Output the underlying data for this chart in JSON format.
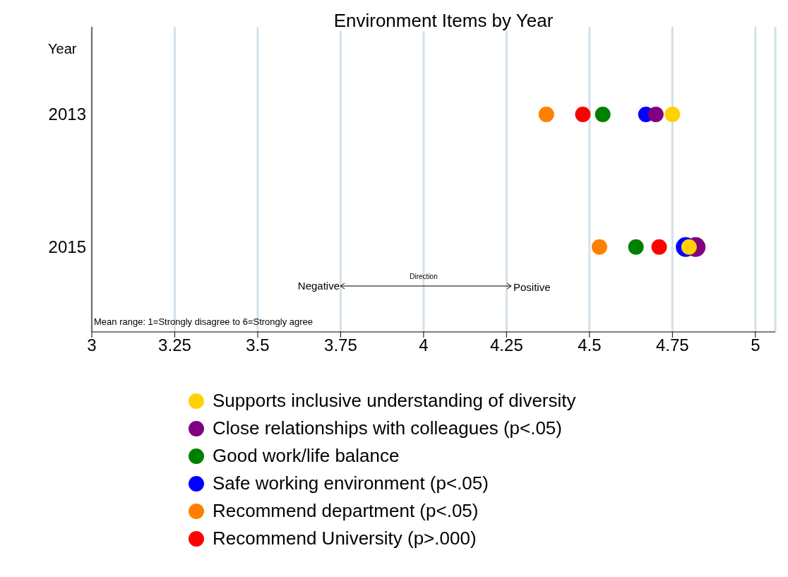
{
  "chart_data": {
    "type": "scatter",
    "title": "Environment Items by Year",
    "ylabel": "Year",
    "categories": [
      "2013",
      "2015"
    ],
    "orientation": "horizontal",
    "xlim": [
      3,
      5.06
    ],
    "xticks": [
      3,
      3.25,
      3.5,
      3.75,
      4,
      4.25,
      4.5,
      4.75,
      5
    ],
    "grid": "x",
    "legend": "bottom",
    "marker": "circle",
    "series": [
      {
        "name": "Supports inclusive understanding of diversity",
        "color": "#ffd200",
        "values": [
          4.75,
          4.8
        ]
      },
      {
        "name": "Close relationships with colleagues (p<.05)",
        "color": "#800080",
        "values": [
          4.7,
          4.82
        ]
      },
      {
        "name": "Good work/life balance",
        "color": "#008000",
        "values": [
          4.54,
          4.64
        ]
      },
      {
        "name": "Safe working environment (p<.05)",
        "color": "#0000ff",
        "values": [
          4.67,
          4.79
        ]
      },
      {
        "name": "Recommend department (p<.05)",
        "color": "#ff8000",
        "values": [
          4.37,
          4.53
        ]
      },
      {
        "name": "Recommend University (p>.000)",
        "color": "#ff0000",
        "values": [
          4.48,
          4.71
        ]
      }
    ],
    "annotations": [
      "Negative",
      "Direction",
      "Positive",
      "Mean range: 1=Strongly disagree to 6=Strongly agree"
    ]
  }
}
